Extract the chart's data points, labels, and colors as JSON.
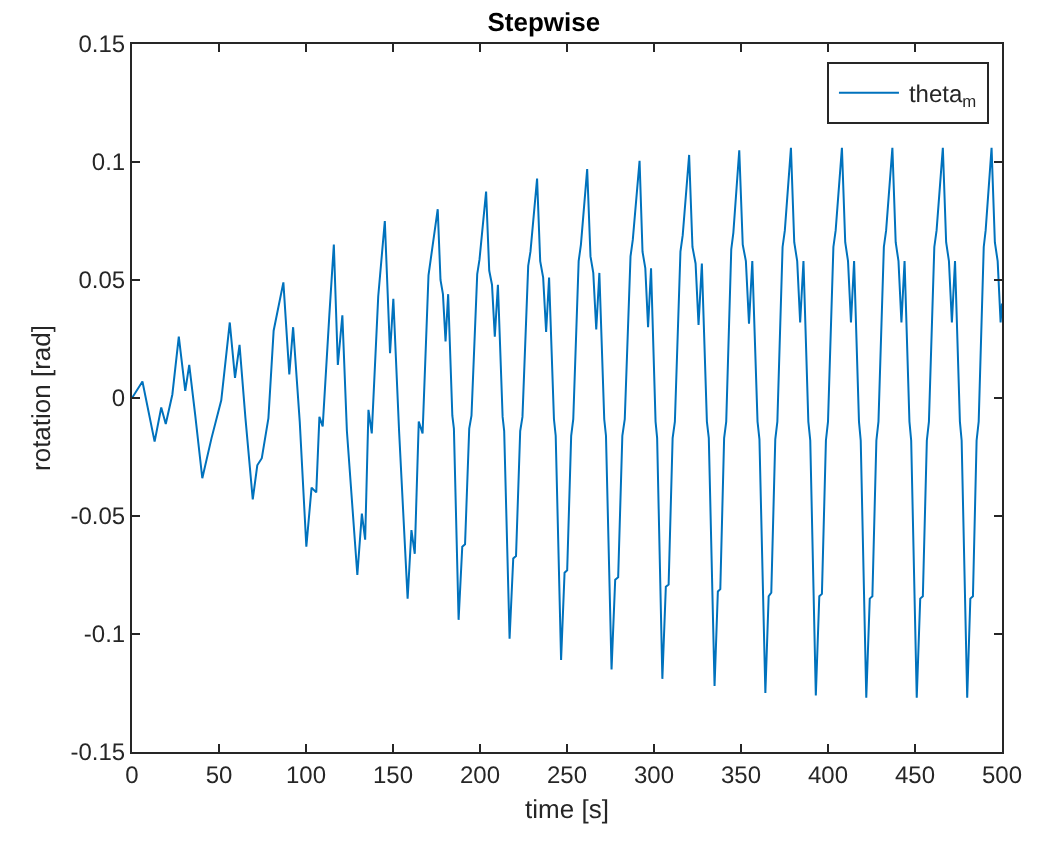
{
  "chart_data": {
    "type": "line",
    "title": "Stepwise",
    "xlabel": "time [s]",
    "ylabel": "rotation [rad]",
    "xlim": [
      0,
      500
    ],
    "xticks": [
      0,
      50,
      100,
      150,
      200,
      250,
      300,
      350,
      400,
      450,
      500
    ],
    "ylim": [
      -0.15,
      0.15
    ],
    "yticks": [
      -0.15,
      -0.1,
      -0.05,
      0,
      0.05,
      0.1,
      0.15
    ],
    "grid": false,
    "legend": "top right",
    "marker": "none",
    "line_style": "solid",
    "series": [
      {
        "name": "theta$_{m}$",
        "color": "#0072bd",
        "x": [
          0,
          6,
          13,
          16.8,
          19.4,
          23.2,
          26.9,
          30.6,
          32.9,
          36.3,
          40.4,
          45.7,
          51.3,
          56.2,
          59.2,
          61.8,
          65.2,
          69.4,
          72,
          74.6,
          78.4,
          81.4,
          87,
          90.4,
          92.6,
          96.4,
          100.2,
          103.2,
          105.9,
          107.7,
          109.6,
          113.4,
          116,
          118.3,
          120.9,
          123.5,
          129.5,
          132.1,
          134,
          135.9,
          137.8,
          141.5,
          145.3,
          148.3,
          150.2,
          153.5,
          158.4,
          160.6,
          162.5,
          164.8,
          167,
          170.4,
          175.7,
          177.3,
          178.7,
          180.2,
          181.7,
          184.1,
          185.0,
          187.7,
          189.8,
          191.4,
          193.8,
          195.1,
          198.4,
          199.7,
          203.5,
          205.3,
          206.9,
          208.5,
          210.3,
          213.0,
          213.9,
          217,
          219.1,
          220.7,
          223.1,
          224.4,
          227.7,
          229.0,
          232.8,
          234.6,
          236.3,
          238.0,
          239.7,
          242.5,
          243.5,
          246.6,
          248.6,
          250.1,
          252.4,
          253.6,
          256.7,
          258.0,
          261.6,
          263.5,
          265.1,
          266.8,
          268.6,
          271.4,
          272.4,
          275.6,
          277.7,
          279.4,
          281.8,
          283.2,
          286.5,
          287.8,
          291.7,
          293.4,
          295.0,
          296.6,
          298.3,
          300.9,
          301.8,
          304.8,
          306.8,
          308.4,
          310.7,
          312.0,
          315.2,
          316.5,
          320.2,
          322.1,
          323.9,
          325.6,
          327.5,
          330.4,
          331.5,
          334.8,
          336.7,
          338.1,
          340.3,
          341.5,
          344.4,
          345.6,
          349,
          351.0,
          352.8,
          354.6,
          356.5,
          359.5,
          360.6,
          364,
          365.9,
          367.4,
          369.7,
          370.9,
          373.9,
          375.2,
          378.7,
          380.6,
          382.3,
          384.0,
          385.9,
          388.7,
          389.8,
          393,
          395.0,
          396.5,
          398.8,
          400.0,
          403.1,
          404.4,
          408,
          409.9,
          411.5,
          413.2,
          415.0,
          417.8,
          418.8,
          422,
          424.0,
          425.5,
          427.8,
          429.0,
          432.1,
          433.4,
          437,
          438.9,
          440.5,
          442.2,
          444.0,
          446.8,
          447.8,
          451,
          453.0,
          454.5,
          456.8,
          458.0,
          461.1,
          462.4,
          466,
          467.9,
          469.5,
          471.2,
          473.0,
          475.8,
          476.8,
          480,
          481.8,
          483.3,
          485.4,
          486.6,
          489.5,
          490.6,
          494,
          495.9,
          497.5,
          499.2,
          500
        ],
        "values": [
          0,
          0.007,
          -0.0185,
          -0.004,
          -0.011,
          0.0015,
          0.026,
          0.003,
          0.014,
          -0.007,
          -0.034,
          -0.017,
          -0.001,
          0.032,
          0.0085,
          0.0225,
          -0.0085,
          -0.043,
          -0.0285,
          -0.0255,
          -0.0085,
          0.0285,
          0.049,
          0.01,
          0.03,
          -0.01,
          -0.063,
          -0.038,
          -0.04,
          -0.008,
          -0.012,
          0.035,
          0.065,
          0.014,
          0.035,
          -0.014,
          -0.075,
          -0.049,
          -0.06,
          -0.005,
          -0.015,
          0.043,
          0.075,
          0.019,
          0.042,
          -0.014,
          -0.085,
          -0.056,
          -0.066,
          -0.01,
          -0.015,
          0.052,
          0.08,
          0.05,
          0.044,
          0.024,
          0.044,
          -0.0075,
          -0.013,
          -0.094,
          -0.063,
          -0.062,
          -0.013,
          -0.0075,
          0.0525,
          0.0586,
          0.0875,
          0.054,
          0.048,
          0.026,
          0.048,
          -0.008,
          -0.014,
          -0.102,
          -0.068,
          -0.067,
          -0.014,
          -0.008,
          0.056,
          0.062,
          0.093,
          0.058,
          0.051,
          0.028,
          0.051,
          -0.009,
          -0.016,
          -0.111,
          -0.074,
          -0.073,
          -0.016,
          -0.009,
          0.058,
          0.065,
          0.097,
          0.06,
          0.053,
          0.029,
          0.053,
          -0.009,
          -0.016,
          -0.115,
          -0.077,
          -0.076,
          -0.016,
          -0.009,
          0.06,
          0.067,
          0.1005,
          0.062,
          0.055,
          0.03,
          0.055,
          -0.01,
          -0.017,
          -0.119,
          -0.08,
          -0.079,
          -0.017,
          -0.01,
          0.062,
          0.069,
          0.103,
          0.064,
          0.057,
          0.031,
          0.057,
          -0.01,
          -0.017,
          -0.122,
          -0.082,
          -0.081,
          -0.017,
          -0.01,
          0.063,
          0.07,
          0.105,
          0.065,
          0.058,
          0.0315,
          0.058,
          -0.01,
          -0.0175,
          -0.125,
          -0.084,
          -0.0825,
          -0.0175,
          -0.01,
          0.064,
          0.071,
          0.106,
          0.066,
          0.058,
          0.032,
          0.058,
          -0.01,
          -0.018,
          -0.126,
          -0.084,
          -0.083,
          -0.018,
          -0.01,
          0.064,
          0.071,
          0.106,
          0.066,
          0.058,
          0.032,
          0.058,
          -0.01,
          -0.018,
          -0.127,
          -0.085,
          -0.084,
          -0.018,
          -0.01,
          0.064,
          0.071,
          0.106,
          0.066,
          0.058,
          0.032,
          0.058,
          -0.01,
          -0.018,
          -0.127,
          -0.085,
          -0.084,
          -0.018,
          -0.01,
          0.064,
          0.071,
          0.106,
          0.066,
          0.058,
          0.032,
          0.058,
          -0.01,
          -0.018,
          -0.127,
          -0.085,
          -0.084,
          -0.018,
          -0.01,
          0.064,
          0.071,
          0.106,
          0.066,
          0.058,
          0.032,
          0.04
        ]
      }
    ]
  }
}
